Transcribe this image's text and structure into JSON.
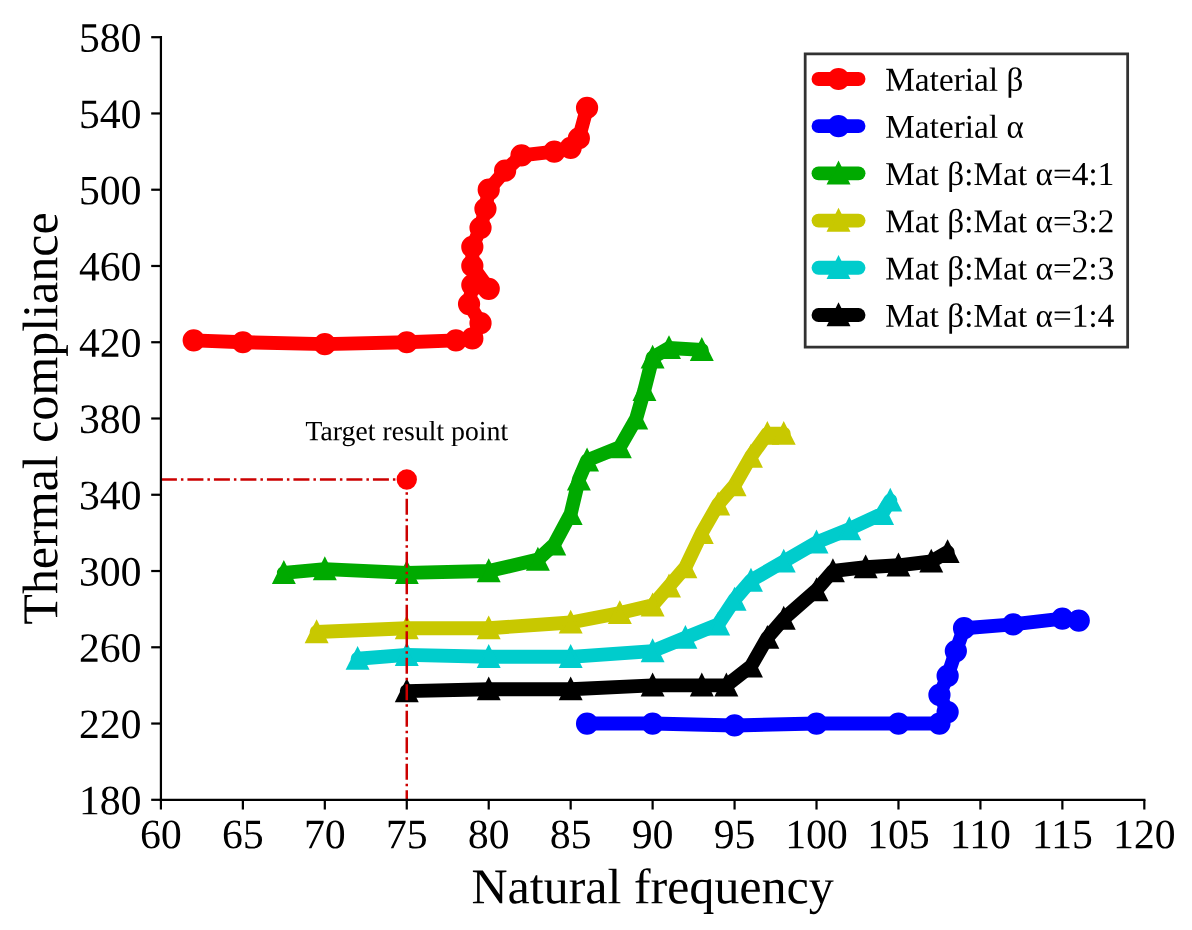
{
  "chart_data": {
    "type": "line",
    "xlabel": "Natural frequency",
    "ylabel": "Thermal compliance",
    "xlim": [
      60,
      120
    ],
    "xticks": [
      60,
      65,
      70,
      75,
      80,
      85,
      90,
      95,
      100,
      105,
      110,
      115,
      120
    ],
    "ylim": [
      180,
      580
    ],
    "yticks": [
      180,
      220,
      260,
      300,
      340,
      380,
      420,
      460,
      500,
      540,
      580
    ],
    "grid": false,
    "legend": "top right",
    "annotations": [
      {
        "text": "Target result point",
        "x": 75,
        "y": 348
      }
    ],
    "series": [
      {
        "name": "Material β",
        "color": "#ff0000",
        "marker": "circle",
        "x": [
          62,
          65,
          70,
          75,
          78,
          79,
          79.5,
          78.8,
          79,
          80,
          79,
          79,
          79.5,
          79.8,
          80,
          81,
          82,
          84,
          85,
          85.5,
          86
        ],
        "values": [
          421,
          420,
          419,
          420,
          421,
          422,
          430,
          440,
          450,
          448,
          460,
          470,
          480,
          490,
          500,
          510,
          518,
          520,
          522,
          527,
          543
        ]
      },
      {
        "name": "Material α",
        "color": "#0000ff",
        "marker": "circle",
        "x": [
          86,
          90,
          95,
          100,
          105,
          107.5,
          108,
          107.5,
          108,
          108.5,
          109,
          112,
          115,
          116
        ],
        "values": [
          220,
          220,
          219,
          220,
          220,
          220,
          226,
          235,
          245,
          258,
          270,
          272,
          275,
          274
        ]
      },
      {
        "name": "Mat β:Mat α=4:1",
        "color": "#00aa00",
        "marker": "triangle",
        "x": [
          67.5,
          70,
          75,
          80,
          83,
          84,
          85,
          85.5,
          86,
          88,
          89,
          89.5,
          90,
          91,
          93
        ],
        "values": [
          299,
          301,
          299,
          300,
          306,
          314,
          330,
          348,
          358,
          365,
          380,
          395,
          412,
          417,
          416
        ]
      },
      {
        "name": "Mat β:Mat α=3:2",
        "color": "#c8c800",
        "marker": "triangle",
        "x": [
          69.5,
          75,
          80,
          85,
          88,
          90,
          91,
          92,
          93,
          94,
          95,
          96,
          97,
          98
        ],
        "values": [
          268,
          270,
          270,
          273,
          278,
          282,
          292,
          302,
          320,
          335,
          345,
          360,
          372,
          372
        ]
      },
      {
        "name": "Mat β:Mat α=2:3",
        "color": "#00cccc",
        "marker": "triangle",
        "x": [
          72,
          75,
          80,
          85,
          90,
          92,
          94,
          95,
          96,
          98,
          100,
          102,
          104,
          104.5
        ],
        "values": [
          254,
          256,
          255,
          255,
          258,
          265,
          272,
          285,
          295,
          305,
          315,
          322,
          330,
          337
        ]
      },
      {
        "name": "Mat β:Mat α=1:4",
        "color": "#000000",
        "marker": "triangle",
        "x": [
          75,
          80,
          85,
          90,
          93,
          94.5,
          96,
          97,
          98,
          100,
          101,
          103,
          105,
          107,
          108
        ],
        "values": [
          237,
          238,
          238,
          240,
          240,
          240,
          250,
          265,
          275,
          290,
          300,
          302,
          303,
          305,
          310
        ]
      },
      {
        "type": "line",
        "color": "#cc0000",
        "marker": "none",
        "line_style": "dashdot",
        "x": [
          60,
          75,
          75
        ],
        "values": [
          348,
          348,
          180
        ]
      },
      {
        "type": "scatter",
        "color": "#ff0000",
        "marker": "circle",
        "x": [
          75
        ],
        "values": [
          348
        ]
      }
    ]
  }
}
